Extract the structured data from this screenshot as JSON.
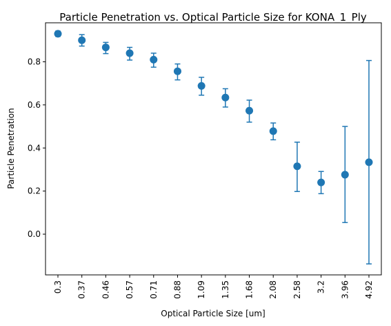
{
  "chart_data": {
    "type": "scatter",
    "title": "Particle Penetration vs. Optical Particle Size for KONA_1_Ply",
    "xlabel": "Optical Particle Size [um]",
    "ylabel": "Particle Penetration",
    "categories": [
      "0.3",
      "0.37",
      "0.46",
      "0.57",
      "0.71",
      "0.88",
      "1.09",
      "1.35",
      "1.68",
      "2.08",
      "2.58",
      "3.2",
      "3.96",
      "4.92"
    ],
    "series": [
      {
        "values": [
          0.93,
          0.9,
          0.867,
          0.84,
          0.81,
          0.756,
          0.688,
          0.634,
          0.573,
          0.478,
          0.315,
          0.24,
          0.276,
          0.334
        ],
        "err_low": [
          0.918,
          0.873,
          0.838,
          0.808,
          0.775,
          0.716,
          0.645,
          0.59,
          0.52,
          0.438,
          0.198,
          0.188,
          0.054,
          -0.138
        ],
        "err_high": [
          0.942,
          0.926,
          0.89,
          0.867,
          0.84,
          0.79,
          0.728,
          0.675,
          0.622,
          0.516,
          0.427,
          0.291,
          0.5,
          0.806
        ]
      }
    ],
    "yticks": [
      "0.0",
      "0.2",
      "0.4",
      "0.6",
      "0.8"
    ],
    "ylim": [
      -0.189,
      0.981
    ],
    "grid": false,
    "color": "#1f77b4"
  }
}
